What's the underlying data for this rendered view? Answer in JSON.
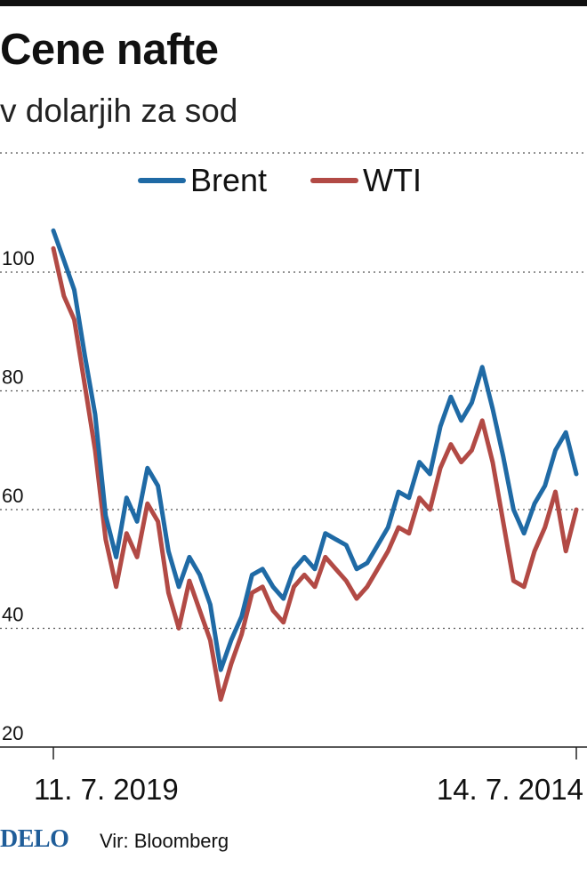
{
  "title": "Cene nafte",
  "subtitle": "v dolarjih za sod",
  "footer": {
    "logo": "DELO",
    "source": "Vir: Bloomberg"
  },
  "colors": {
    "brent": "#1f6aa5",
    "wti": "#b24a45",
    "grid": "#555555",
    "axis": "#222222"
  },
  "chart_data": {
    "type": "line",
    "title": "Cene nafte",
    "subtitle": "v dolarjih za sod",
    "xlabel": "",
    "ylabel": "",
    "ylim": [
      20,
      110
    ],
    "yticks": [
      20,
      40,
      60,
      80,
      100
    ],
    "grid": true,
    "legend_position": "top-center",
    "x_start_label": "11. 7. 2019",
    "x_end_label": "14. 7. 2014",
    "x": [
      0,
      0.02,
      0.04,
      0.06,
      0.08,
      0.1,
      0.12,
      0.14,
      0.16,
      0.18,
      0.2,
      0.22,
      0.24,
      0.26,
      0.28,
      0.3,
      0.32,
      0.34,
      0.36,
      0.38,
      0.4,
      0.42,
      0.44,
      0.46,
      0.48,
      0.5,
      0.52,
      0.54,
      0.56,
      0.58,
      0.6,
      0.62,
      0.64,
      0.66,
      0.68,
      0.7,
      0.72,
      0.74,
      0.76,
      0.78,
      0.8,
      0.82,
      0.84,
      0.86,
      0.88,
      0.9,
      0.92,
      0.94,
      0.96,
      0.98,
      1.0
    ],
    "series": [
      {
        "name": "Brent",
        "color": "#1f6aa5",
        "values": [
          107,
          102,
          97,
          86,
          76,
          59,
          52,
          62,
          58,
          67,
          64,
          53,
          47,
          52,
          49,
          44,
          33,
          38,
          42,
          49,
          50,
          47,
          45,
          50,
          52,
          50,
          56,
          55,
          54,
          50,
          51,
          54,
          57,
          63,
          62,
          68,
          66,
          74,
          79,
          75,
          78,
          84,
          77,
          69,
          60,
          56,
          61,
          64,
          70,
          73,
          66
        ]
      },
      {
        "name": "WTI",
        "color": "#b24a45",
        "values": [
          104,
          96,
          92,
          81,
          70,
          55,
          47,
          56,
          52,
          61,
          58,
          46,
          40,
          48,
          43,
          38,
          28,
          34,
          39,
          46,
          47,
          43,
          41,
          47,
          49,
          47,
          52,
          50,
          48,
          45,
          47,
          50,
          53,
          57,
          56,
          62,
          60,
          67,
          71,
          68,
          70,
          75,
          68,
          58,
          48,
          47,
          53,
          57,
          63,
          53,
          60
        ]
      }
    ]
  }
}
